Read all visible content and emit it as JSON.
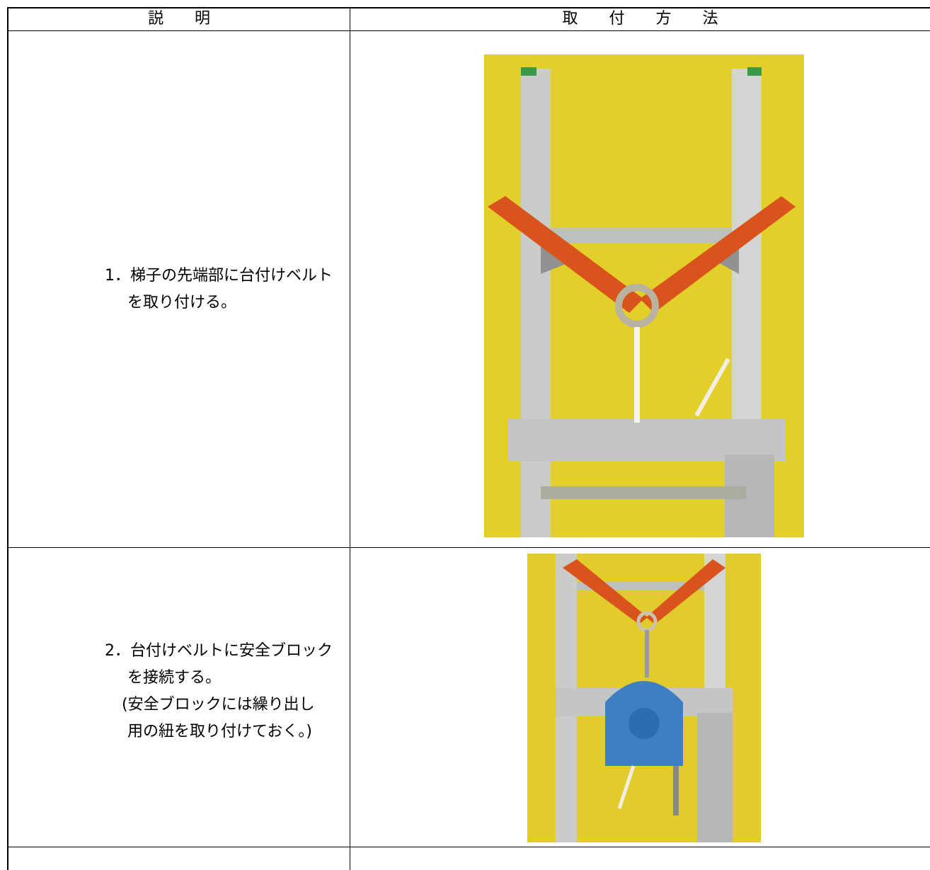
{
  "table": {
    "header": [
      "説　　明",
      "取　　付　　方　　法"
    ],
    "rows": [
      {
        "lines": [
          "1．梯子の先端部に台付けベルト",
          "を取り付ける。"
        ]
      },
      {
        "lines": [
          "2．台付けベルトに安全ブロック",
          "を接続する。",
          "(安全ブロックには繰り出し",
          "用の紐を取り付けておく。)"
        ]
      }
    ]
  }
}
